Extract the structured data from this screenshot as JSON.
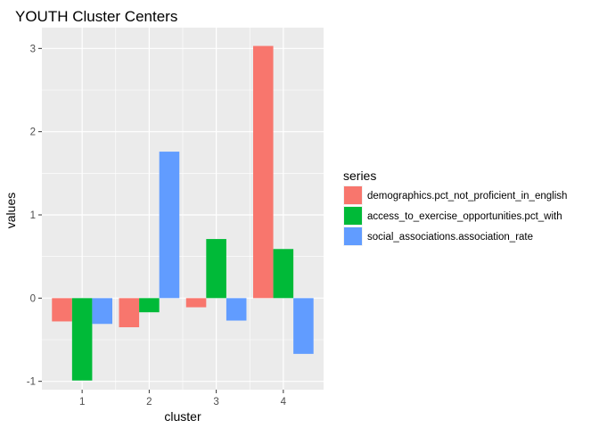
{
  "chart_data": {
    "type": "bar",
    "title": "YOUTH Cluster Centers",
    "xlabel": "cluster",
    "ylabel": "values",
    "categories": [
      "1",
      "2",
      "3",
      "4"
    ],
    "yticks": [
      -1,
      0,
      1,
      2,
      3
    ],
    "ytick_labels": [
      "-1",
      "0",
      "1",
      "2",
      "3"
    ],
    "ylim": [
      -1.1,
      3.25
    ],
    "grid": true,
    "legend_title": "series",
    "legend_position": "right",
    "series": [
      {
        "name": "demographics.pct_not_proficient_in_english",
        "color": "#F8766D",
        "values": [
          -0.28,
          -0.35,
          -0.11,
          3.03
        ]
      },
      {
        "name": "access_to_exercise_opportunities.pct_with",
        "color": "#00BA38",
        "values": [
          -0.99,
          -0.17,
          0.71,
          0.59
        ]
      },
      {
        "name": "social_associations.association_rate",
        "color": "#619CFF",
        "values": [
          -0.31,
          1.76,
          -0.27,
          -0.67
        ]
      }
    ]
  },
  "colors": {
    "panel_bg": "#EBEBEB",
    "grid": "#FFFFFF",
    "tick": "#333333"
  }
}
